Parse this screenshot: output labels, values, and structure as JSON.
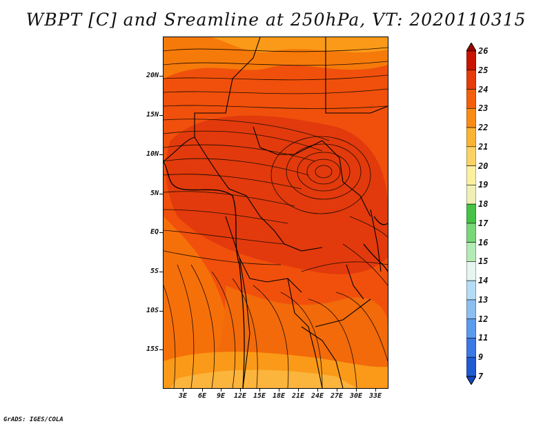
{
  "title": "WBPT [C] and Sreamline at 250hPa, VT: 2020110315",
  "footer": "GrADS: IGES/COLA",
  "map": {
    "lat_labels": [
      "20N",
      "15N",
      "10N",
      "5N",
      "EQ",
      "5S",
      "10S",
      "15S"
    ],
    "lon_labels": [
      "3E",
      "6E",
      "9E",
      "12E",
      "15E",
      "18E",
      "21E",
      "24E",
      "27E",
      "30E",
      "33E"
    ],
    "fill_colors": {
      "warm_23_24": "#e8400c",
      "mid_22_23": "#f5670a",
      "low_21_22": "#fa9514",
      "lower_20_21": "#fab840"
    },
    "line_color": "#000000"
  },
  "colorbar": {
    "labels": [
      "26",
      "25",
      "24",
      "23",
      "22",
      "21",
      "20",
      "19",
      "18",
      "17",
      "16",
      "15",
      "14",
      "13",
      "12",
      "11",
      "9",
      "7"
    ],
    "colors": [
      "#a00000",
      "#c81400",
      "#e63c0a",
      "#f55f0a",
      "#fa8c14",
      "#fab432",
      "#fcd264",
      "#fcf0a0",
      "#f0f0b4",
      "#46c346",
      "#78d778",
      "#b4ebb4",
      "#e6f5f0",
      "#b4dcf5",
      "#8cbef0",
      "#5a9bf0",
      "#3c78e6",
      "#1e5ad2",
      "#1446be"
    ]
  }
}
